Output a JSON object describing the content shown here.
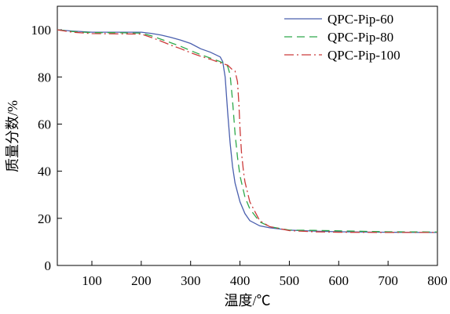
{
  "chart_data": {
    "type": "line",
    "xlabel": "温度/℃",
    "ylabel": "质量分数/%",
    "xlim": [
      30,
      800
    ],
    "ylim": [
      0,
      110
    ],
    "xticks": [
      100,
      200,
      300,
      400,
      500,
      600,
      700,
      800
    ],
    "yticks": [
      0,
      20,
      40,
      60,
      80,
      100
    ],
    "grid": false,
    "legend_position": "top-right",
    "series": [
      {
        "name": "QPC-Pip-60",
        "color": "#4a5fae",
        "dash": "solid",
        "x": [
          30,
          60,
          100,
          150,
          200,
          220,
          240,
          260,
          280,
          300,
          320,
          340,
          360,
          365,
          370,
          375,
          380,
          385,
          390,
          400,
          410,
          420,
          440,
          460,
          500,
          550,
          600,
          700,
          800
        ],
        "y": [
          100,
          99.5,
          99,
          99,
          99,
          98.5,
          97.8,
          96.8,
          95.6,
          94.2,
          92.0,
          90.5,
          88.5,
          86.5,
          80.0,
          65.0,
          52.0,
          42.0,
          35.0,
          27.0,
          22.0,
          19.0,
          16.8,
          16.0,
          15.0,
          14.6,
          14.3,
          14.1,
          14.0
        ]
      },
      {
        "name": "QPC-Pip-80",
        "color": "#2ea84a",
        "dash": "10,6",
        "x": [
          30,
          60,
          100,
          150,
          200,
          220,
          240,
          260,
          280,
          300,
          320,
          340,
          360,
          370,
          375,
          380,
          385,
          390,
          395,
          400,
          410,
          420,
          440,
          460,
          500,
          550,
          600,
          700,
          800
        ],
        "y": [
          100,
          99.3,
          98.8,
          98.8,
          98.6,
          97.5,
          96.0,
          94.5,
          93.0,
          91.2,
          89.5,
          88.0,
          86.5,
          85.5,
          84.5,
          81.0,
          70.0,
          56.0,
          46.0,
          38.0,
          29.0,
          24.0,
          18.5,
          16.5,
          15.0,
          14.9,
          14.7,
          14.3,
          14.2
        ]
      },
      {
        "name": "QPC-Pip-100",
        "color": "#cc3b3b",
        "dash": "12,4,2,4",
        "x": [
          30,
          60,
          100,
          150,
          200,
          220,
          240,
          260,
          280,
          300,
          320,
          340,
          360,
          375,
          385,
          390,
          395,
          398,
          400,
          403,
          407,
          410,
          420,
          440,
          460,
          500,
          550,
          600,
          700,
          800
        ],
        "y": [
          100,
          99,
          98.4,
          98.3,
          98.2,
          96.8,
          95.2,
          93.5,
          92.0,
          90.3,
          88.8,
          87.5,
          86.0,
          85.0,
          83.0,
          82.5,
          78.0,
          68.0,
          58.0,
          48.0,
          40.0,
          35.5,
          27.0,
          19.0,
          16.5,
          14.8,
          14.3,
          14.1,
          14.0,
          14.0
        ]
      }
    ]
  }
}
